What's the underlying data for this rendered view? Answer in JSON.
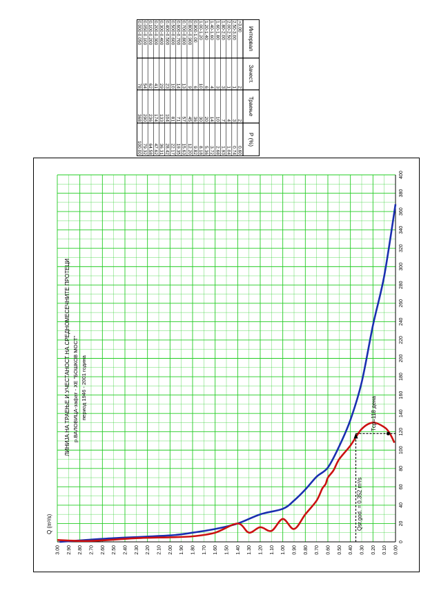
{
  "table": {
    "headers": [
      "Интервал",
      "Зачест.",
      "Траење",
      "Р (%)"
    ],
    "rows": [
      [
        ">3.00",
        "2",
        "2",
        "0.60"
      ],
      [
        "2.50-3.00",
        "1",
        "3",
        "0.74"
      ],
      [
        "2.00-2.50",
        "1",
        "4",
        "1.04"
      ],
      [
        "1.80-2.00",
        "3",
        "7",
        "1.93"
      ],
      [
        "1.60-1.80",
        "3",
        "10",
        "2.68"
      ],
      [
        "1.40-1.60",
        "4",
        "14",
        "3.72"
      ],
      [
        "1.20-1.40",
        "6",
        "20",
        "5.36"
      ],
      [
        "1.00-1.20",
        "10",
        "30",
        "8.18"
      ],
      [
        "0.900-1.00",
        "6",
        "36",
        "9.82"
      ],
      [
        "0.800-0.900",
        "9",
        "45",
        "12.20"
      ],
      [
        "0.700-0.800",
        "13",
        "57",
        "15.63"
      ],
      [
        "0.600-0.700",
        "14",
        "71",
        "19.35"
      ],
      [
        "0.500-0.600",
        "10",
        "81",
        "22.17"
      ],
      [
        "0.400-0.500",
        "23",
        "104",
        "28.42"
      ],
      [
        "0.300-0.400",
        "29",
        "133",
        "36.31"
      ],
      [
        "0.200-0.300",
        "41",
        "174",
        "47.62"
      ],
      [
        "0.100-0.200",
        "62",
        "236",
        "64.58"
      ],
      [
        "0.050-0.100",
        "54",
        "290",
        "79.32"
      ],
      [
        "0.000-0.050",
        "78",
        "368",
        "100.00"
      ]
    ]
  },
  "chart_data": {
    "type": "line",
    "title_lines": [
      "ЛИНИЈА НА ТРАЕЊЕ И УЧЕСТАНОСТ НА СРЕДНОМЕСЕЧНИТЕ ПРОТЕЦИ",
      "р.ВАЛОВИЦА-зафат  - ХЕ \"БОШКОВ МОСТ\"",
      "период 1946 - 2001 година"
    ],
    "ylabel": "Q (m³/s)",
    "xlabel": "",
    "xlim": [
      0,
      400
    ],
    "ylim": [
      0,
      3.0
    ],
    "x_ticks": [
      0,
      20,
      40,
      60,
      80,
      100,
      120,
      140,
      160,
      180,
      200,
      220,
      240,
      260,
      280,
      300,
      320,
      340,
      360,
      380,
      400
    ],
    "y_ticks": [
      "0.00",
      "0.10",
      "0.20",
      "0.30",
      "0.40",
      "0.50",
      "0.60",
      "0.70",
      "0.80",
      "0.90",
      "1.00",
      "1.10",
      "1.20",
      "1.30",
      "1.40",
      "1.50",
      "1.60",
      "1.70",
      "1.80",
      "1.90",
      "2.00",
      "2.10",
      "2.20",
      "2.30",
      "2.40",
      "2.50",
      "2.60",
      "2.70",
      "2.80",
      "2.90",
      "3.00"
    ],
    "series": [
      {
        "color": "#1a2fb0",
        "x": [
          0,
          4,
          7,
          10,
          14,
          20,
          30,
          36,
          45,
          57,
          71,
          81,
          104,
          133,
          174,
          236,
          290,
          368
        ],
        "y": [
          2.98,
          2.5,
          2.0,
          1.8,
          1.6,
          1.4,
          1.2,
          1.0,
          0.9,
          0.8,
          0.7,
          0.6,
          0.5,
          0.4,
          0.3,
          0.2,
          0.1,
          0.0
        ]
      },
      {
        "color": "#cc1111",
        "x": [
          2,
          1,
          4,
          5,
          6,
          10,
          20,
          10,
          16,
          12,
          25,
          14,
          30,
          45,
          58,
          63,
          70,
          78,
          90,
          105,
          123,
          130,
          125,
          118,
          108
        ],
        "y": [
          3.0,
          2.7,
          2.3,
          2.0,
          1.8,
          1.6,
          1.4,
          1.3,
          1.2,
          1.1,
          1.0,
          0.9,
          0.8,
          0.7,
          0.65,
          0.62,
          0.6,
          0.55,
          0.5,
          0.4,
          0.3,
          0.2,
          0.1,
          0.05,
          0.01
        ]
      }
    ],
    "annotations": {
      "qsr_label": "Qsr.god. = 0.352 m³/s",
      "qsr_value": 0.352,
      "tsr_label": "Tср=118 дена",
      "tsr_value": 118
    },
    "grid": true,
    "grid_color": "#22cc22"
  }
}
